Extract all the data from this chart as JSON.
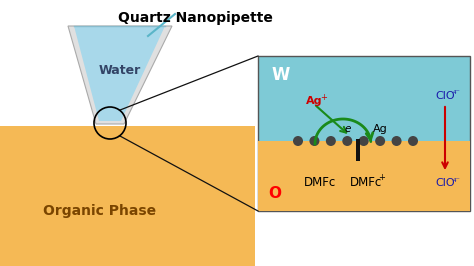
{
  "title": "Quartz Nanopipette",
  "bg_color": "#ffffff",
  "organic_color": "#f5b955",
  "water_color": "#a8d8ea",
  "pipette_outline_color": "#cccccc",
  "water_label": "Water",
  "organic_label": "Organic Phase",
  "w_label": "W",
  "o_label": "O",
  "ag_plus_label": "Ag",
  "ag_label": "Ag",
  "e_label": "e",
  "dmfc_label": "DMFc",
  "dmfc_plus_label": "DMFc",
  "clo4_label": "ClO",
  "right_panel_bg_water": "#7ecad6",
  "green_arrow_color": "#1a8a1a",
  "red_arrow_color": "#cc0000",
  "ag_plus_color": "#cc0000",
  "clo4_color": "#1a1aaa",
  "nanoparticle_color": "#444444",
  "electrode_color": "#111111",
  "pointer_line_color": "#5ab5c8",
  "zoom_line_color": "#111111"
}
